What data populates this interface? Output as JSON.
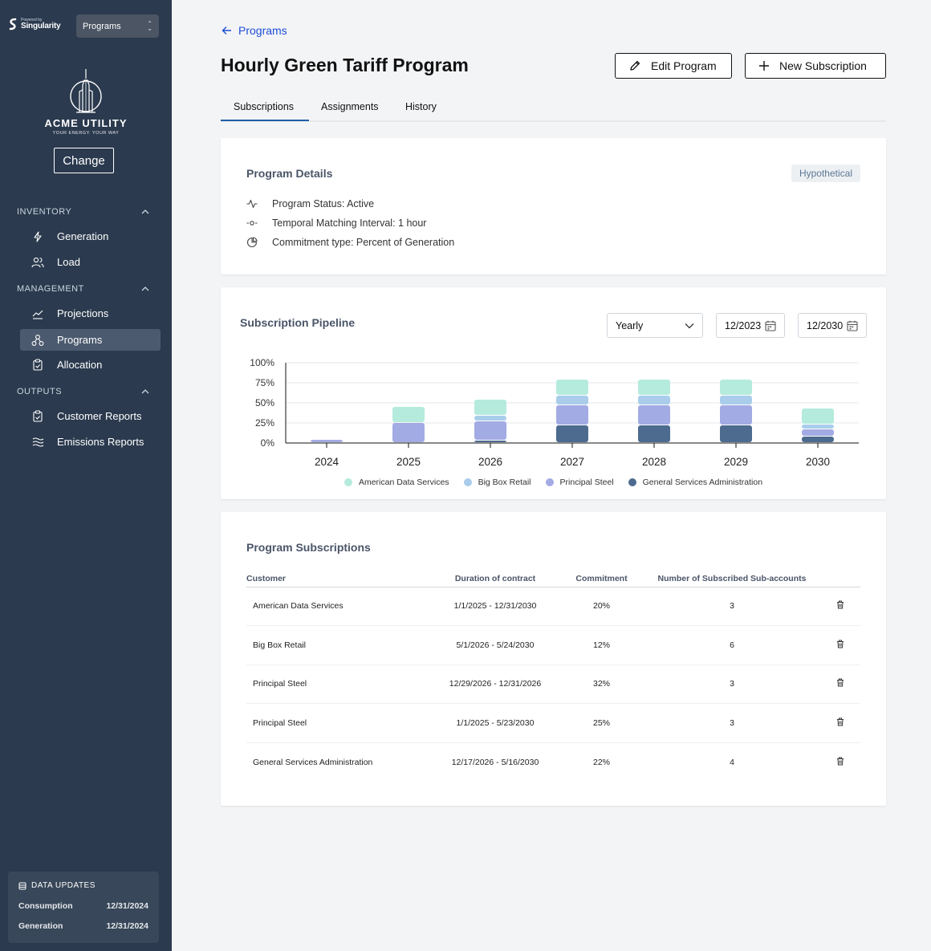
{
  "sidebar": {
    "powered_small": "Powered by",
    "powered_brand": "Singularity",
    "program_select": "Programs",
    "logo_name": "ACME UTILITY",
    "logo_tagline": "YOUR ENERGY. YOUR WAY",
    "change_label": "Change",
    "sections": {
      "inventory": "INVENTORY",
      "management": "MANAGEMENT",
      "outputs": "OUTPUTS"
    },
    "items": {
      "generation": "Generation",
      "load": "Load",
      "projections": "Projections",
      "programs": "Programs",
      "allocation": "Allocation",
      "customer_reports": "Customer Reports",
      "emissions_reports": "Emissions Reports"
    },
    "data_updates": {
      "title": "DATA UPDATES",
      "rows": [
        {
          "label": "Consumption",
          "date": "12/31/2024"
        },
        {
          "label": "Generation",
          "date": "12/31/2024"
        }
      ]
    }
  },
  "header": {
    "back_label": "Programs",
    "title": "Hourly Green Tariff Program",
    "edit_button": "Edit Program",
    "new_button": "New Subscription"
  },
  "tabs": [
    "Subscriptions",
    "Assignments",
    "History"
  ],
  "details": {
    "title": "Program Details",
    "badge": "Hypothetical",
    "status": "Program Status: Active",
    "interval": "Temporal Matching Interval: 1 hour",
    "commitment": "Commitment type: Percent of Generation"
  },
  "pipeline": {
    "title": "Subscription Pipeline",
    "granularity": "Yearly",
    "start": "12/2023",
    "end": "12/2030"
  },
  "colors": {
    "american": "#b4ebdc",
    "bigbox": "#a9cdea",
    "principal": "#a3abe4",
    "gsa": "#4d6b8f",
    "sidebar": "#2b3a4e",
    "accent": "#1e5fa8"
  },
  "chart_data": {
    "type": "bar",
    "stacked": true,
    "categories": [
      "2024",
      "2025",
      "2026",
      "2027",
      "2028",
      "2029",
      "2030"
    ],
    "series": [
      {
        "name": "General Services Administration",
        "color": "#4d6b8f",
        "values": [
          0,
          0,
          3,
          22,
          22,
          22,
          8
        ]
      },
      {
        "name": "Principal Steel",
        "color": "#a3abe4",
        "values": [
          4,
          25,
          24,
          25,
          25,
          25,
          9
        ]
      },
      {
        "name": "Big Box Retail",
        "color": "#a9cdea",
        "values": [
          0,
          0,
          7,
          12,
          12,
          12,
          6
        ]
      },
      {
        "name": "American Data Services",
        "color": "#b4ebdc",
        "values": [
          0,
          20,
          20,
          20,
          20,
          20,
          20
        ]
      }
    ],
    "yticks": [
      "0%",
      "25%",
      "50%",
      "75%",
      "100%"
    ],
    "ylim": [
      0,
      100
    ],
    "legend_position": "bottom",
    "legend_order": [
      "American Data Services",
      "Big Box Retail",
      "Principal Steel",
      "General Services Administration"
    ]
  },
  "subscriptions": {
    "title": "Program Subscriptions",
    "columns": [
      "Customer",
      "Duration of contract",
      "Commitment",
      "Number of Subscribed Sub-accounts"
    ],
    "rows": [
      {
        "customer": "American Data Services",
        "duration": "1/1/2025 - 12/31/2030",
        "commitment": "20%",
        "subaccounts": "3"
      },
      {
        "customer": "Big Box Retail",
        "duration": "5/1/2026 - 5/24/2030",
        "commitment": "12%",
        "subaccounts": "6"
      },
      {
        "customer": "Principal Steel",
        "duration": "12/29/2026 - 12/31/2026",
        "commitment": "32%",
        "subaccounts": "3"
      },
      {
        "customer": "Principal Steel",
        "duration": "1/1/2025 - 5/23/2030",
        "commitment": "25%",
        "subaccounts": "3"
      },
      {
        "customer": "General Services Administration",
        "duration": "12/17/2026 - 5/16/2030",
        "commitment": "22%",
        "subaccounts": "4"
      }
    ]
  }
}
